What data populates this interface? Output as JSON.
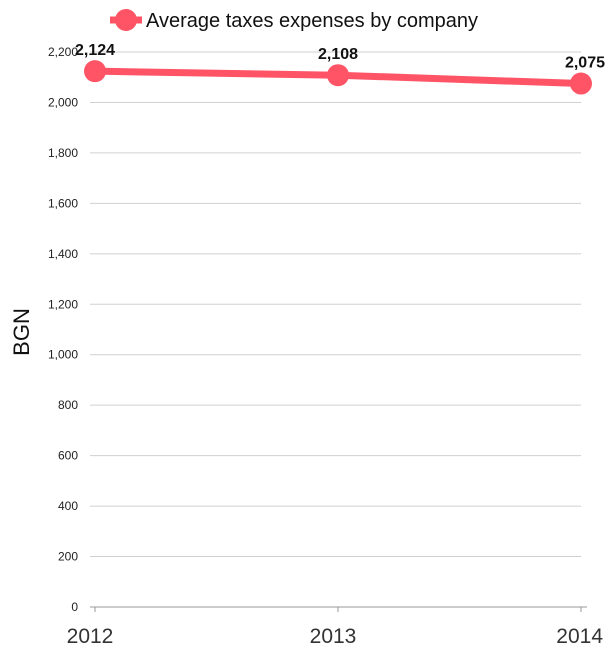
{
  "chart_data": {
    "type": "line",
    "categories": [
      "2012",
      "2013",
      "2014"
    ],
    "series": [
      {
        "name": "Average taxes expenses by company",
        "values": [
          2124,
          2108,
          2075
        ]
      }
    ],
    "data_labels": [
      "2,124",
      "2,108",
      "2,075"
    ],
    "ylabel": "BGN",
    "xlabel": "",
    "ylim": [
      0,
      2200
    ],
    "yticks": [
      0,
      200,
      400,
      600,
      800,
      1000,
      1200,
      1400,
      1600,
      1800,
      2000,
      2200
    ],
    "ytick_labels": [
      "0",
      "200",
      "400",
      "600",
      "800",
      "1,000",
      "1,200",
      "1,400",
      "1,600",
      "1,800",
      "2,000",
      "2,200"
    ],
    "grid": true,
    "legend_position": "top",
    "colors": {
      "series": "#ff5466"
    }
  }
}
